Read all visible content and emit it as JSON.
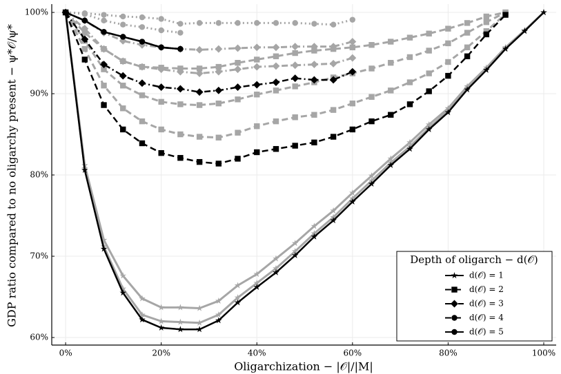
{
  "chart_data": {
    "type": "line",
    "x_label": "Oligarchization − |𝒪|/|M|",
    "y_label": "GDP ratio compared to no oligarchy present − ψ*𝒪/ψ*",
    "x": [
      0,
      0.04,
      0.08,
      0.12,
      0.16,
      0.2,
      0.24,
      0.28,
      0.32,
      0.36,
      0.4,
      0.44,
      0.48,
      0.52,
      0.56,
      0.6,
      0.64,
      0.68,
      0.72,
      0.76,
      0.8,
      0.84,
      0.88,
      0.92,
      0.96,
      1.0
    ],
    "xlim": [
      -0.029,
      1.026
    ],
    "ylim": [
      0.5907,
      1.0102
    ],
    "xticks": [
      {
        "value": 0,
        "label": "0%"
      },
      {
        "value": 0.2,
        "label": "20%"
      },
      {
        "value": 0.4,
        "label": "40%"
      },
      {
        "value": 0.6,
        "label": "60%"
      },
      {
        "value": 0.8,
        "label": "80%"
      },
      {
        "value": 1.0,
        "label": "100%"
      }
    ],
    "yticks": [
      {
        "value": 0.6,
        "label": "60%"
      },
      {
        "value": 0.7,
        "label": "70%"
      },
      {
        "value": 0.8,
        "label": "80%"
      },
      {
        "value": 0.9,
        "label": "90%"
      },
      {
        "value": 1.0,
        "label": "100%"
      }
    ],
    "grid": true,
    "legend_title": "Depth of oligarch − d(𝒪)",
    "legend_position": "lower right",
    "series": [
      {
        "name": "d(𝒪) = 1",
        "color": "#000000",
        "dash": "solid",
        "marker": "star",
        "values": [
          1.0,
          0.806,
          0.709,
          0.655,
          0.622,
          0.612,
          0.61,
          0.61,
          0.621,
          0.643,
          0.662,
          0.68,
          0.701,
          0.724,
          0.744,
          0.767,
          0.789,
          0.812,
          0.832,
          0.856,
          0.877,
          0.905,
          0.929,
          0.955,
          0.977,
          1.0
        ]
      },
      {
        "name": "d(𝒪) = 2",
        "color": "#000000",
        "dash": "dashed",
        "marker": "square",
        "values": [
          1.0,
          0.942,
          0.886,
          0.856,
          0.839,
          0.827,
          0.821,
          0.816,
          0.814,
          0.82,
          0.828,
          0.832,
          0.836,
          0.84,
          0.847,
          0.856,
          0.866,
          0.874,
          0.887,
          0.903,
          0.922,
          0.946,
          0.973,
          0.997,
          null,
          null
        ]
      },
      {
        "name": "d(𝒪) = 3",
        "color": "#000000",
        "dash": "dashdot",
        "marker": "diamond",
        "values": [
          1.0,
          0.967,
          0.936,
          0.922,
          0.913,
          0.908,
          0.906,
          0.902,
          0.904,
          0.908,
          0.911,
          0.914,
          0.919,
          0.917,
          0.917,
          0.927,
          null,
          null,
          null,
          null,
          null,
          null,
          null,
          null,
          null,
          null
        ]
      },
      {
        "name": "d(𝒪) = 4",
        "color": "#000000",
        "dash": "dashed",
        "marker": "circle",
        "values": [
          1.0,
          0.99,
          0.976,
          0.97,
          0.964,
          0.957,
          0.955,
          null,
          null,
          null,
          null,
          null,
          null,
          null,
          null,
          null,
          null,
          null,
          null,
          null,
          null,
          null,
          null,
          null,
          null,
          null
        ]
      },
      {
        "name": "d(𝒪) = 5",
        "color": "#000000",
        "dash": "solid",
        "marker": "circle",
        "values": [
          1.0,
          0.99,
          0.976,
          0.97,
          0.964,
          0.957,
          0.955,
          null,
          null,
          null,
          null,
          null,
          null,
          null,
          null,
          null,
          null,
          null,
          null,
          null,
          null,
          null,
          null,
          null,
          null,
          null
        ]
      }
    ],
    "background_series": [
      {
        "color": "#a6a6a6",
        "dash": "solid",
        "marker": "star",
        "values": [
          1.0,
          0.808,
          0.712,
          0.66,
          0.628,
          0.62,
          0.619,
          0.618,
          0.628,
          0.649,
          0.667,
          0.685,
          0.706,
          0.728,
          0.748,
          0.771,
          0.793,
          0.815,
          0.835,
          0.858,
          0.879,
          0.907,
          0.93,
          0.956,
          0.978,
          1.0
        ]
      },
      {
        "color": "#a6a6a6",
        "dash": "solid",
        "marker": "star",
        "values": [
          1.0,
          0.812,
          0.72,
          0.676,
          0.648,
          0.637,
          0.637,
          0.636,
          0.645,
          0.664,
          0.678,
          0.697,
          0.716,
          0.737,
          0.756,
          0.778,
          0.799,
          0.82,
          0.84,
          0.862,
          0.882,
          0.909,
          0.932,
          0.957,
          0.978,
          1.0
        ]
      },
      {
        "color": "#a6a6a6",
        "dash": "dashed",
        "marker": "square",
        "values": [
          1.0,
          0.955,
          0.91,
          0.882,
          0.866,
          0.856,
          0.85,
          0.847,
          0.846,
          0.852,
          0.86,
          0.866,
          0.871,
          0.874,
          0.88,
          0.888,
          0.896,
          0.904,
          0.914,
          0.925,
          0.939,
          0.957,
          0.977,
          0.998,
          null,
          null
        ]
      },
      {
        "color": "#a6a6a6",
        "dash": "dashed",
        "marker": "square",
        "values": [
          1.0,
          0.965,
          0.93,
          0.91,
          0.898,
          0.89,
          0.887,
          0.886,
          0.888,
          0.893,
          0.899,
          0.904,
          0.909,
          0.914,
          0.92,
          0.925,
          0.931,
          0.938,
          0.945,
          0.953,
          0.962,
          0.975,
          0.988,
          1.0,
          null,
          null
        ]
      },
      {
        "color": "#a6a6a6",
        "dash": "dashed",
        "marker": "square",
        "values": [
          1.0,
          0.975,
          0.955,
          0.94,
          0.933,
          0.932,
          0.931,
          0.931,
          0.933,
          0.938,
          0.942,
          0.946,
          0.95,
          0.953,
          0.955,
          0.957,
          0.96,
          0.964,
          0.969,
          0.974,
          0.98,
          0.987,
          0.995,
          1.0,
          null,
          null
        ]
      },
      {
        "color": "#a6a6a6",
        "dash": "dashdot",
        "marker": "diamond",
        "values": [
          1.0,
          0.98,
          0.955,
          0.94,
          0.933,
          0.93,
          0.927,
          0.925,
          0.927,
          0.93,
          0.933,
          0.934,
          0.935,
          0.936,
          0.937,
          0.944,
          null,
          null,
          null,
          null,
          null,
          null,
          null,
          null,
          null,
          null
        ]
      },
      {
        "color": "#a6a6a6",
        "dash": "dashdot",
        "marker": "diamond",
        "values": [
          1.0,
          0.99,
          0.975,
          0.965,
          0.96,
          0.957,
          0.955,
          0.954,
          0.955,
          0.956,
          0.957,
          0.957,
          0.958,
          0.958,
          0.958,
          0.964,
          null,
          null,
          null,
          null,
          null,
          null,
          null,
          null,
          null,
          null
        ]
      },
      {
        "color": "#a6a6a6",
        "dash": "dotted",
        "marker": "circle",
        "values": [
          1.0,
          0.998,
          0.99,
          0.985,
          0.982,
          0.978,
          0.975,
          null,
          null,
          null,
          null,
          null,
          null,
          null,
          null,
          null,
          null,
          null,
          null,
          null,
          null,
          null,
          null,
          null,
          null,
          null
        ]
      },
      {
        "color": "#a6a6a6",
        "dash": "dotted",
        "marker": "circle",
        "values": [
          1.0,
          0.999,
          0.997,
          0.995,
          0.994,
          0.992,
          0.986,
          0.987,
          0.987,
          0.987,
          0.987,
          0.987,
          0.987,
          0.986,
          0.985,
          0.991,
          null,
          null,
          null,
          null,
          null,
          null,
          null,
          null,
          null,
          null
        ]
      }
    ]
  }
}
